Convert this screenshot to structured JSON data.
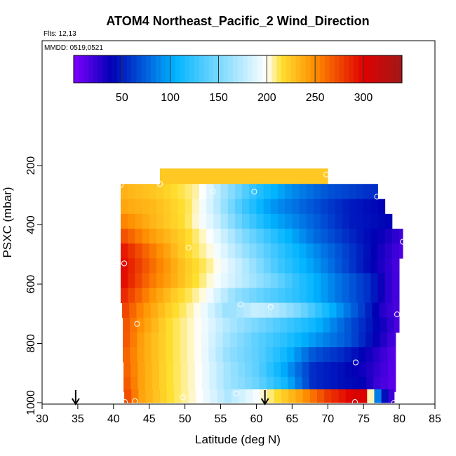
{
  "chart_data": {
    "type": "heatmap",
    "title": "ATOM4 Northeast_Pacific_2 Wind_Direction",
    "flights_label": "Flts: 12,13",
    "dates_label": "MMDD: 0519,0521",
    "xlabel": "Latitude (deg N)",
    "ylabel": "PSXC (mbar)",
    "xlim": [
      30,
      85
    ],
    "ylim": [
      1000,
      0
    ],
    "x_ticks": [
      "30",
      "35",
      "40",
      "45",
      "50",
      "55",
      "60",
      "65",
      "70",
      "75",
      "80",
      "85"
    ],
    "y_ticks": [
      "200",
      "400",
      "600",
      "800",
      "1000"
    ],
    "colorbar": {
      "range": [
        0,
        340
      ],
      "ticks": [
        "50",
        "100",
        "150",
        "200",
        "250",
        "300"
      ],
      "tick_values": [
        50,
        100,
        150,
        200,
        250,
        300
      ],
      "colors": [
        "#7f00ff",
        "#0000b4",
        "#00b4ff",
        "#ffffff",
        "#ffe030",
        "#ff8c00",
        "#e00000",
        "#a01818"
      ],
      "color_stops": [
        0,
        40,
        105,
        200,
        215,
        250,
        300,
        340
      ]
    },
    "grid": false,
    "pressure_rows": [
      {
        "p": 230,
        "lat_start": 46.5,
        "lat_end": 70.0
      },
      {
        "p": 280,
        "lat_start": 41.0,
        "lat_end": 77.0
      },
      {
        "p": 330,
        "lat_start": 41.0,
        "lat_end": 78.0
      },
      {
        "p": 380,
        "lat_start": 41.0,
        "lat_end": 79.0
      },
      {
        "p": 430,
        "lat_start": 41.0,
        "lat_end": 80.5
      },
      {
        "p": 480,
        "lat_start": 41.0,
        "lat_end": 80.5
      },
      {
        "p": 530,
        "lat_start": 41.0,
        "lat_end": 80.0
      },
      {
        "p": 580,
        "lat_start": 41.0,
        "lat_end": 80.0
      },
      {
        "p": 630,
        "lat_start": 41.0,
        "lat_end": 80.0
      },
      {
        "p": 680,
        "lat_start": 41.2,
        "lat_end": 80.0
      },
      {
        "p": 730,
        "lat_start": 41.3,
        "lat_end": 80.0
      },
      {
        "p": 780,
        "lat_start": 41.3,
        "lat_end": 79.5
      },
      {
        "p": 830,
        "lat_start": 41.3,
        "lat_end": 79.5
      },
      {
        "p": 880,
        "lat_start": 41.4,
        "lat_end": 79.5
      },
      {
        "p": 930,
        "lat_start": 41.4,
        "lat_end": 79.5
      },
      {
        "p": 990,
        "lat_start": 41.5,
        "lat_end": 79.3
      }
    ],
    "rows_sampled": [
      {
        "p": 230,
        "points": [
          [
            46.5,
            225
          ],
          [
            70.0,
            225
          ]
        ]
      },
      {
        "p": 280,
        "points": [
          [
            41,
            235
          ],
          [
            46,
            225
          ],
          [
            52,
            205
          ],
          [
            55,
            170
          ],
          [
            60,
            120
          ],
          [
            65,
            90
          ],
          [
            70,
            70
          ],
          [
            77,
            55
          ]
        ]
      },
      {
        "p": 330,
        "points": [
          [
            41,
            240
          ],
          [
            46,
            230
          ],
          [
            51,
            210
          ],
          [
            54,
            180
          ],
          [
            58,
            130
          ],
          [
            62,
            95
          ],
          [
            68,
            70
          ],
          [
            73,
            50
          ],
          [
            78,
            40
          ]
        ]
      },
      {
        "p": 380,
        "points": [
          [
            41,
            255
          ],
          [
            45,
            235
          ],
          [
            50,
            215
          ],
          [
            54,
            185
          ],
          [
            58,
            140
          ],
          [
            62,
            105
          ],
          [
            68,
            75
          ],
          [
            73,
            50
          ],
          [
            79,
            40
          ]
        ]
      },
      {
        "p": 430,
        "points": [
          [
            41,
            275
          ],
          [
            45,
            245
          ],
          [
            50,
            220
          ],
          [
            54,
            195
          ],
          [
            58,
            155
          ],
          [
            63,
            115
          ],
          [
            68,
            80
          ],
          [
            74,
            50
          ],
          [
            78,
            35
          ],
          [
            80.5,
            20
          ]
        ]
      },
      {
        "p": 480,
        "points": [
          [
            41,
            295
          ],
          [
            45,
            260
          ],
          [
            50,
            220
          ],
          [
            54,
            200
          ],
          [
            58,
            165
          ],
          [
            63,
            125
          ],
          [
            69,
            85
          ],
          [
            74,
            55
          ],
          [
            78,
            30
          ],
          [
            80.5,
            15
          ]
        ]
      },
      {
        "p": 530,
        "points": [
          [
            41,
            300
          ],
          [
            45,
            265
          ],
          [
            50,
            225
          ],
          [
            54,
            205
          ],
          [
            58,
            175
          ],
          [
            63,
            130
          ],
          [
            69,
            90
          ],
          [
            74,
            55
          ],
          [
            77,
            35
          ],
          [
            80,
            15
          ]
        ]
      },
      {
        "p": 580,
        "points": [
          [
            41,
            300
          ],
          [
            45,
            260
          ],
          [
            50,
            225
          ],
          [
            54,
            200
          ],
          [
            58,
            175
          ],
          [
            62,
            150
          ],
          [
            66,
            120
          ],
          [
            71,
            85
          ],
          [
            76,
            55
          ],
          [
            78,
            30
          ],
          [
            80,
            15
          ]
        ]
      },
      {
        "p": 630,
        "points": [
          [
            41,
            290
          ],
          [
            45,
            250
          ],
          [
            49,
            220
          ],
          [
            53,
            200
          ],
          [
            57,
            160
          ],
          [
            61,
            140
          ],
          [
            66,
            120
          ],
          [
            71,
            85
          ],
          [
            76,
            55
          ],
          [
            78,
            30
          ],
          [
            80,
            15
          ]
        ]
      },
      {
        "p": 680,
        "points": [
          [
            41.2,
            280
          ],
          [
            44,
            250
          ],
          [
            48,
            220
          ],
          [
            52,
            200
          ],
          [
            56,
            160
          ],
          [
            60,
            180
          ],
          [
            63,
            170
          ],
          [
            66,
            150
          ],
          [
            70,
            110
          ],
          [
            75,
            60
          ],
          [
            78,
            25
          ],
          [
            80,
            15
          ]
        ]
      },
      {
        "p": 730,
        "points": [
          [
            41.3,
            275
          ],
          [
            44,
            245
          ],
          [
            48,
            215
          ],
          [
            52,
            200
          ],
          [
            56,
            170
          ],
          [
            60,
            150
          ],
          [
            64,
            130
          ],
          [
            68,
            110
          ],
          [
            73,
            70
          ],
          [
            77,
            40
          ],
          [
            80,
            15
          ]
        ]
      },
      {
        "p": 780,
        "points": [
          [
            41.3,
            275
          ],
          [
            44,
            240
          ],
          [
            48,
            215
          ],
          [
            52,
            200
          ],
          [
            56,
            165
          ],
          [
            60,
            140
          ],
          [
            64,
            120
          ],
          [
            68,
            95
          ],
          [
            73,
            70
          ],
          [
            76,
            45
          ],
          [
            79.5,
            15
          ]
        ]
      },
      {
        "p": 830,
        "points": [
          [
            41.3,
            270
          ],
          [
            44,
            240
          ],
          [
            48,
            215
          ],
          [
            52,
            200
          ],
          [
            56,
            160
          ],
          [
            60,
            140
          ],
          [
            64,
            110
          ],
          [
            68,
            70
          ],
          [
            72,
            55
          ],
          [
            75,
            40
          ],
          [
            79.5,
            10
          ]
        ]
      },
      {
        "p": 880,
        "points": [
          [
            41.4,
            270
          ],
          [
            44,
            240
          ],
          [
            48,
            215
          ],
          [
            52,
            200
          ],
          [
            56,
            165
          ],
          [
            60,
            140
          ],
          [
            64,
            100
          ],
          [
            68,
            55
          ],
          [
            72,
            45
          ],
          [
            75,
            35
          ],
          [
            79.5,
            10
          ]
        ]
      },
      {
        "p": 930,
        "points": [
          [
            41.4,
            275
          ],
          [
            44,
            240
          ],
          [
            48,
            215
          ],
          [
            52,
            200
          ],
          [
            56,
            165
          ],
          [
            60,
            145
          ],
          [
            64,
            110
          ],
          [
            68,
            55
          ],
          [
            72,
            45
          ],
          [
            75,
            40
          ],
          [
            77,
            20
          ],
          [
            79.5,
            10
          ]
        ]
      },
      {
        "p": 990,
        "points": [
          [
            41.5,
            280
          ],
          [
            44,
            240
          ],
          [
            48,
            215
          ],
          [
            52,
            200
          ],
          [
            56,
            170
          ],
          [
            59,
            190
          ],
          [
            62,
            210
          ],
          [
            66,
            240
          ],
          [
            70,
            280
          ],
          [
            74,
            305
          ],
          [
            75.5,
            300
          ],
          [
            76.5,
            110
          ],
          [
            77.5,
            60
          ],
          [
            78.5,
            30
          ],
          [
            79.3,
            15
          ]
        ]
      }
    ],
    "profile_points": [
      {
        "lat": 41.0,
        "p": 265
      },
      {
        "lat": 46.5,
        "p": 262
      },
      {
        "lat": 53.9,
        "p": 287
      },
      {
        "lat": 59.7,
        "p": 288
      },
      {
        "lat": 69.8,
        "p": 230
      },
      {
        "lat": 76.9,
        "p": 305
      },
      {
        "lat": 80.5,
        "p": 457
      },
      {
        "lat": 50.5,
        "p": 477
      },
      {
        "lat": 41.5,
        "p": 530
      },
      {
        "lat": 57.8,
        "p": 668
      },
      {
        "lat": 62.0,
        "p": 677
      },
      {
        "lat": 79.7,
        "p": 702
      },
      {
        "lat": 43.3,
        "p": 734
      },
      {
        "lat": 73.9,
        "p": 864
      },
      {
        "lat": 57.2,
        "p": 969
      },
      {
        "lat": 49.7,
        "p": 982
      },
      {
        "lat": 41.6,
        "p": 998
      },
      {
        "lat": 43.0,
        "p": 995
      },
      {
        "lat": 73.8,
        "p": 998
      },
      {
        "lat": 79.3,
        "p": 1000
      }
    ],
    "arrows": [
      {
        "lat": 34.7,
        "p": 1000
      },
      {
        "lat": 61.2,
        "p": 1000
      }
    ]
  }
}
